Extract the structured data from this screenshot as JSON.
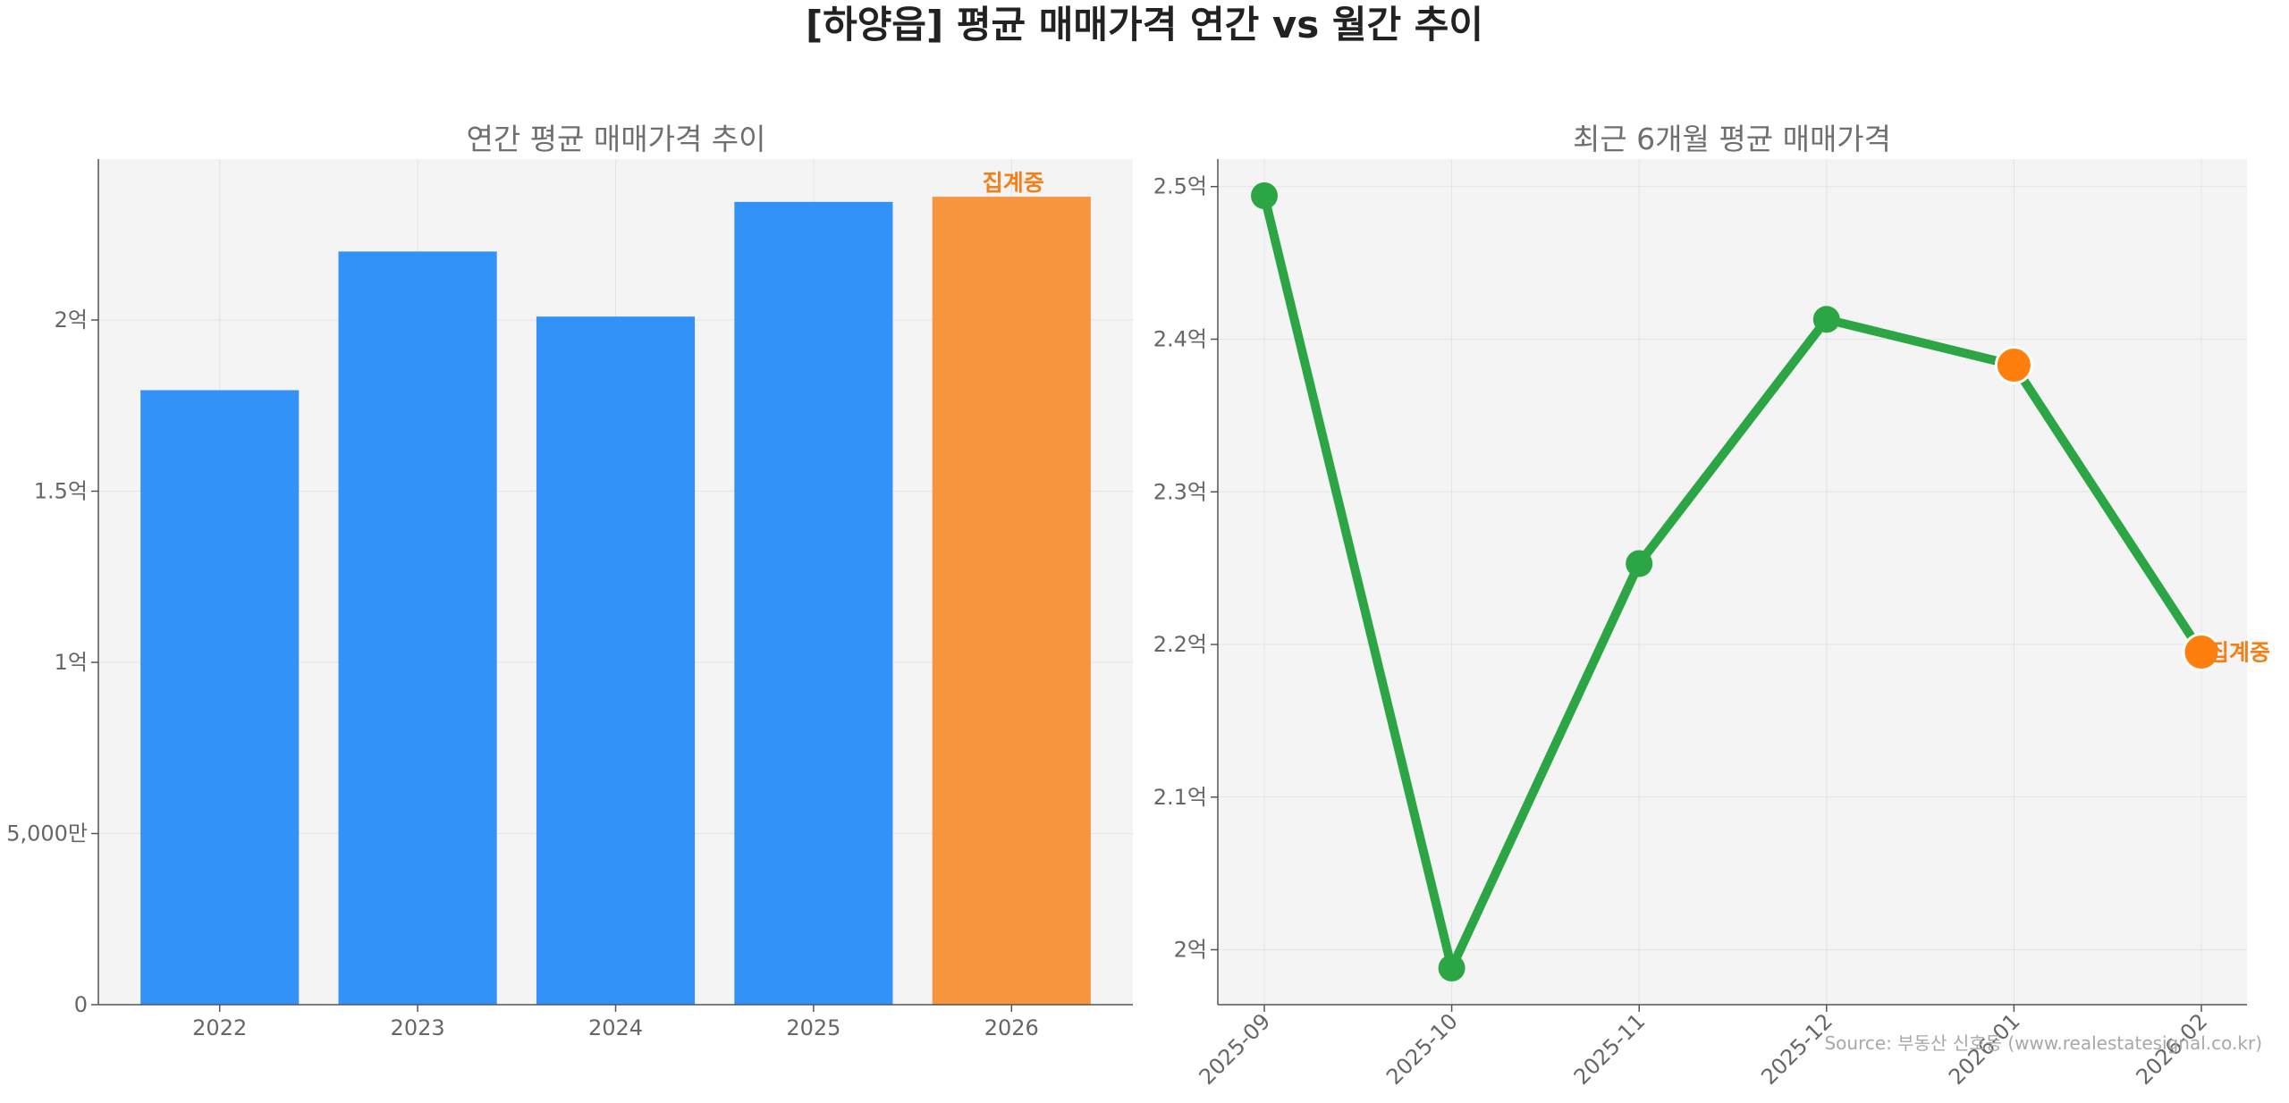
{
  "title": "[하양읍] 평균 매매가격 연간 vs 월간 추이",
  "source": "Source: 부동산 신호등 (www.realestatesignal.co.kr)",
  "colors": {
    "bar": "#3392f8",
    "bar_partial": "#f7953f",
    "line": "#2ca644",
    "highlight": "#ff7f0e",
    "panel_bg": "#f4f4f4"
  },
  "chart_data": [
    {
      "type": "bar",
      "title": "연간 평균 매매가격 추이",
      "categories": [
        "2022",
        "2023",
        "2024",
        "2025",
        "2026"
      ],
      "values": [
        17950,
        22000,
        20100,
        23450,
        23600
      ],
      "unit": "만원",
      "ylim": [
        0,
        24700
      ],
      "yticks": [
        0,
        5000,
        10000,
        15000,
        20000
      ],
      "ytick_labels": [
        "0",
        "5,000만",
        "1억",
        "1.5억",
        "2억"
      ],
      "partial_index": 4,
      "partial_label": "집계중",
      "grid": true
    },
    {
      "type": "line",
      "title": "최근 6개월 평균 매매가격",
      "x": [
        "2025-09",
        "2025-10",
        "2025-11",
        "2025-12",
        "2026-01",
        "2026-02"
      ],
      "values": [
        24940,
        19880,
        22530,
        24130,
        23830,
        21950
      ],
      "unit": "만원",
      "ylim": [
        19640,
        25180
      ],
      "yticks": [
        20000,
        21000,
        22000,
        23000,
        24000,
        25000
      ],
      "ytick_labels": [
        "2억",
        "2.1억",
        "2.2억",
        "2.3억",
        "2.4억",
        "2.5억"
      ],
      "highlight_indices": [
        4,
        5
      ],
      "partial_label": "집계중",
      "grid": true
    }
  ]
}
